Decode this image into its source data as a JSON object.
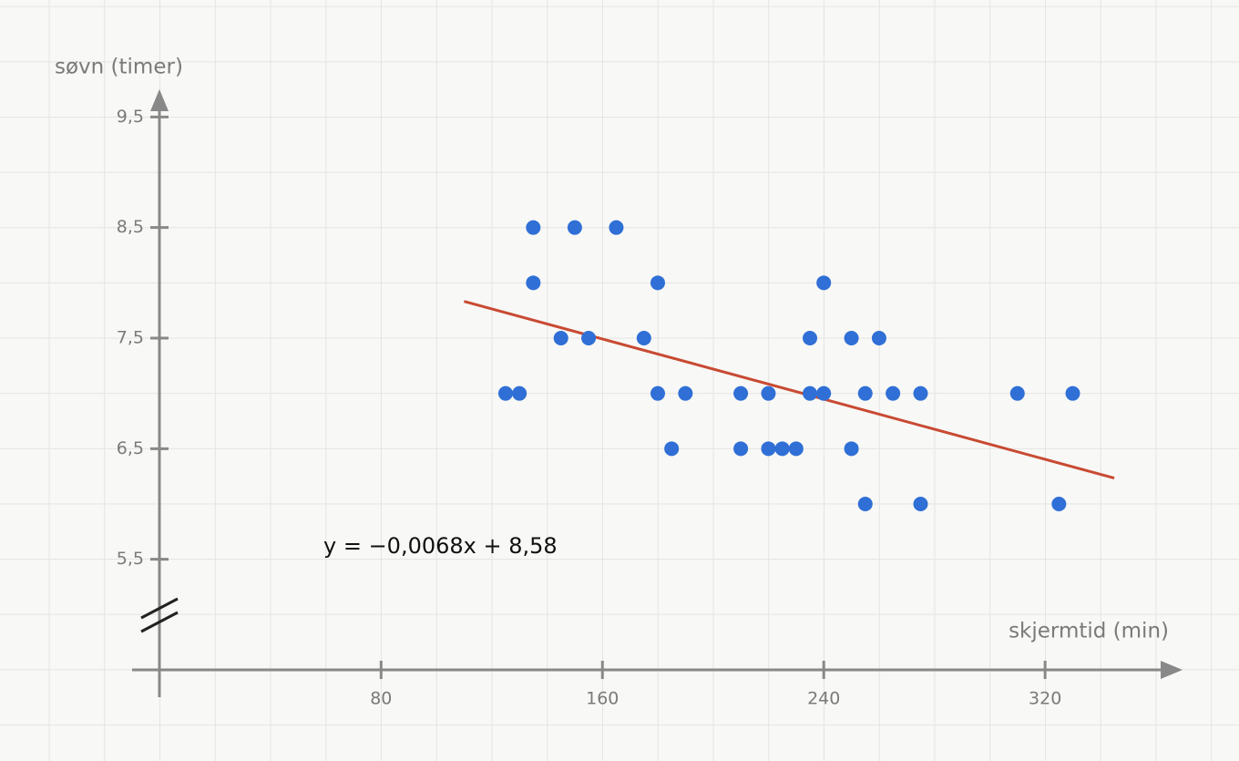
{
  "chart_data": {
    "type": "scatter",
    "x_label": "skjermtid (min)",
    "y_label": "søvn (timer)",
    "color": "#2f6fd6",
    "x": [
      135,
      150,
      165,
      135,
      180,
      240,
      145,
      155,
      175,
      235,
      250,
      260,
      125,
      130,
      180,
      190,
      210,
      220,
      235,
      240,
      255,
      265,
      275,
      310,
      330,
      185,
      210,
      220,
      225,
      230,
      250,
      255,
      275,
      325
    ],
    "y": [
      8.5,
      8.5,
      8.5,
      8,
      8,
      8,
      7.5,
      7.5,
      7.5,
      7.5,
      7.5,
      7.5,
      7,
      7,
      7,
      7,
      7,
      7,
      7,
      7,
      7,
      7,
      7,
      7,
      7,
      6.5,
      6.5,
      6.5,
      6.5,
      6.5,
      6.5,
      6,
      6,
      6
    ],
    "xlim": [
      -10,
      370
    ],
    "ylim": [
      4.5,
      9.75
    ],
    "xticks": [
      80,
      160,
      240,
      320
    ],
    "yticks": [
      {
        "value": 5.5,
        "label": "5,5"
      },
      {
        "value": 6.5,
        "label": "6,5"
      },
      {
        "value": 7.5,
        "label": "7,5"
      },
      {
        "value": 8.5,
        "label": "8,5"
      },
      {
        "value": 9.5,
        "label": "9,5"
      }
    ],
    "trendline": {
      "equation": "y = −0,0068x + 8,58",
      "slope": -0.0068,
      "intercept": 8.58,
      "x": [
        110,
        345
      ],
      "color": "#c84a32"
    }
  }
}
